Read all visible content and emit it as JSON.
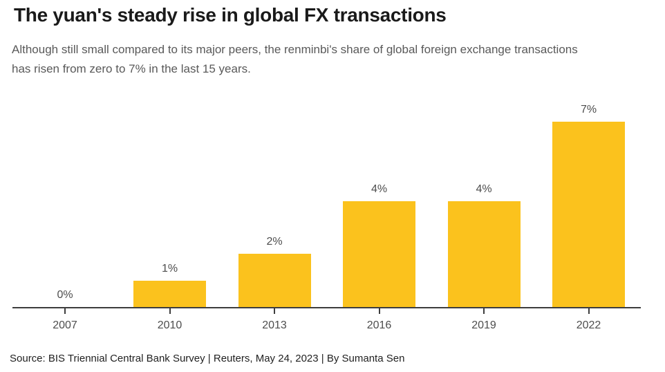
{
  "header": {
    "title": "The yuan's steady rise in global FX transactions",
    "subtitle": "Although still small compared to its major peers, the renminbi's share of global foreign exchange transactions has risen from zero to 7% in the last 15 years."
  },
  "footer": {
    "source": "Source: BIS Triennial Central Bank Survey | Reuters, May 24, 2023 | By Sumanta Sen"
  },
  "colors": {
    "bar": "#FBC21D",
    "axis": "#3d3d3d",
    "labels": "#4d4d4d",
    "title": "#1a1a1a",
    "subtitle": "#595959"
  },
  "chart_data": {
    "type": "bar",
    "title": "The yuan's steady rise in global FX transactions",
    "subtitle": "Although still small compared to its major peers, the renminbi's share of global foreign exchange transactions has risen from zero to 7% in the last 15 years.",
    "categories": [
      "2007",
      "2010",
      "2013",
      "2016",
      "2019",
      "2022"
    ],
    "values": [
      0,
      1,
      2,
      4,
      4,
      7
    ],
    "value_labels": [
      "0%",
      "1%",
      "2%",
      "4%",
      "4%",
      "7%"
    ],
    "unit": "%",
    "xlabel": "",
    "ylabel": "",
    "ylim": [
      0,
      7
    ],
    "grid": false,
    "legend": "none",
    "bar_color": "#FBC21D",
    "source": "Source: BIS Triennial Central Bank Survey | Reuters, May 24, 2023 | By Sumanta Sen"
  }
}
